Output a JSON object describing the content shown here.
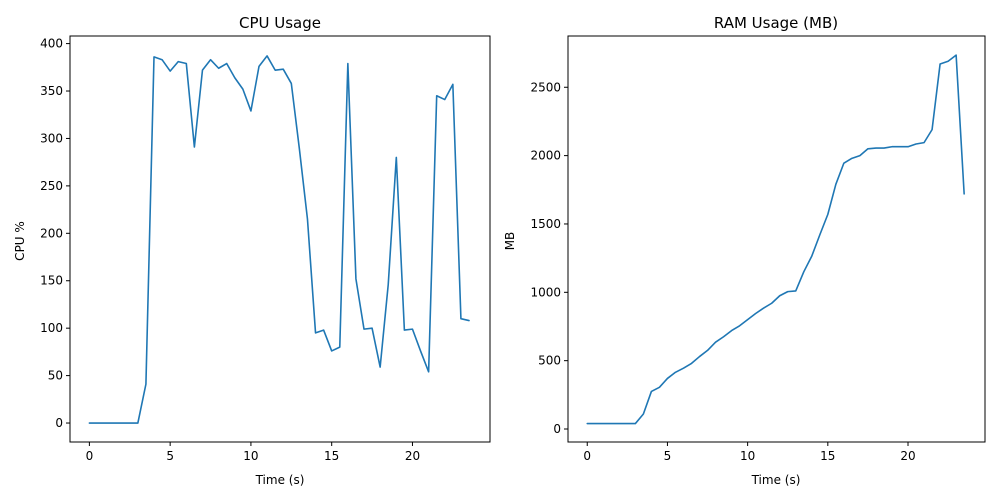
{
  "colors": {
    "series": "#1f77b4"
  },
  "chart_data": [
    {
      "type": "line",
      "title": "CPU Usage",
      "xlabel": "Time (s)",
      "ylabel": "CPU %",
      "xlim": [
        -1.2,
        24.8
      ],
      "ylim": [
        -20,
        408
      ],
      "xticks": [
        0,
        5,
        10,
        15,
        20
      ],
      "yticks": [
        0,
        50,
        100,
        150,
        200,
        250,
        300,
        350,
        400
      ],
      "grid": false,
      "series": [
        {
          "x": [
            0,
            0.5,
            1,
            1.5,
            2,
            2.5,
            3,
            3.5,
            4,
            4.5,
            5,
            5.5,
            6,
            6.5,
            7,
            7.5,
            8,
            8.5,
            9,
            9.5,
            10,
            10.5,
            11,
            11.5,
            12,
            12.5,
            13,
            13.5,
            14,
            14.5,
            15,
            15.5,
            16,
            16.5,
            17,
            17.5,
            18,
            18.5,
            19,
            19.5,
            20,
            20.5,
            21,
            21.5,
            22,
            22.5,
            23,
            23.5
          ],
          "y": [
            0,
            0,
            0,
            0,
            0,
            0,
            0,
            41,
            386,
            383,
            371,
            381,
            379,
            291,
            372,
            383,
            374,
            379,
            364,
            352,
            329,
            376,
            387,
            372,
            373,
            358,
            289,
            215,
            95,
            98,
            76,
            80,
            379,
            152,
            99,
            100,
            59,
            146,
            280,
            98,
            99,
            76,
            54,
            345,
            341,
            357,
            110,
            108
          ]
        }
      ]
    },
    {
      "type": "line",
      "title": "RAM Usage (MB)",
      "xlabel": "Time (s)",
      "ylabel": "MB",
      "xlim": [
        -1.2,
        24.8
      ],
      "ylim": [
        -95,
        2875
      ],
      "xticks": [
        0,
        5,
        10,
        15,
        20
      ],
      "yticks": [
        0,
        500,
        1000,
        1500,
        2000,
        2500
      ],
      "grid": false,
      "series": [
        {
          "x": [
            0,
            0.5,
            1,
            1.5,
            2,
            2.5,
            3,
            3.5,
            4,
            4.5,
            5,
            5.5,
            6,
            6.5,
            7,
            7.5,
            8,
            8.5,
            9,
            9.5,
            10,
            10.5,
            11,
            11.5,
            12,
            12.5,
            13,
            13.5,
            14,
            14.5,
            15,
            15.5,
            16,
            16.5,
            17,
            17.5,
            18,
            18.5,
            19,
            19.5,
            20,
            20.5,
            21,
            21.5,
            22,
            22.5,
            23,
            23.5
          ],
          "y": [
            40,
            40,
            40,
            40,
            40,
            40,
            40,
            110,
            275,
            305,
            370,
            415,
            445,
            480,
            530,
            575,
            635,
            675,
            720,
            755,
            800,
            845,
            885,
            920,
            975,
            1005,
            1010,
            1150,
            1265,
            1420,
            1570,
            1790,
            1945,
            1980,
            2000,
            2050,
            2055,
            2055,
            2065,
            2065,
            2065,
            2085,
            2095,
            2190,
            2670,
            2690,
            2735,
            1720
          ]
        }
      ]
    }
  ]
}
